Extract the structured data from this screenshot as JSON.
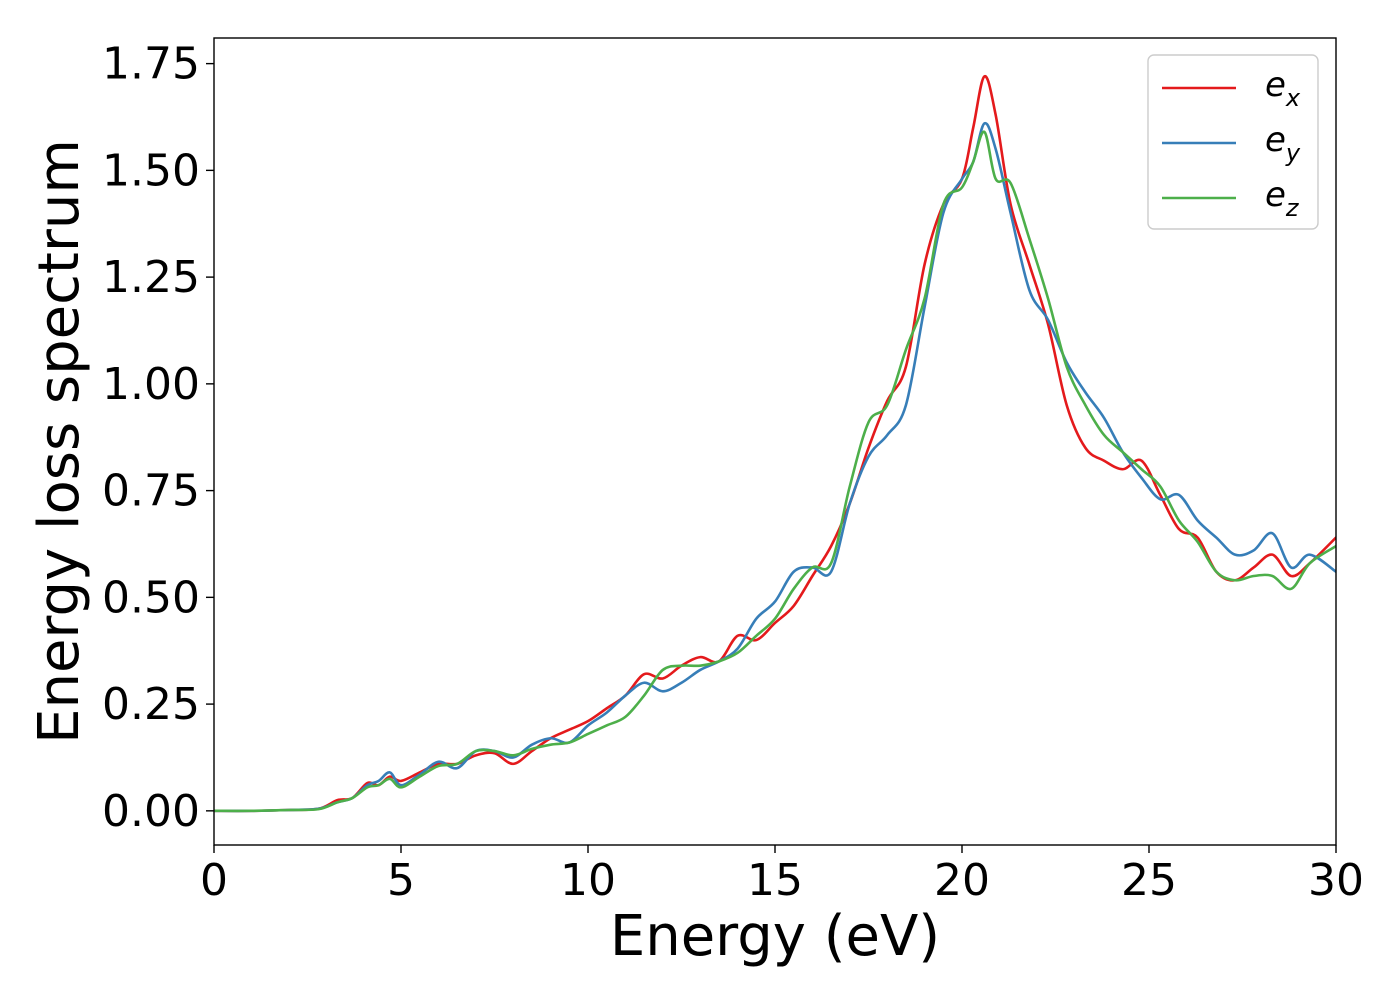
{
  "chart_data": {
    "type": "line",
    "title": "",
    "xlabel": "Energy (eV)",
    "ylabel": "Energy loss spectrum",
    "xlim": [
      0,
      30
    ],
    "ylim": [
      -0.08,
      1.81
    ],
    "xticks": [
      0,
      5,
      10,
      15,
      20,
      25,
      30
    ],
    "xtick_labels": [
      "0",
      "5",
      "10",
      "15",
      "20",
      "25",
      "30"
    ],
    "yticks": [
      0.0,
      0.25,
      0.5,
      0.75,
      1.0,
      1.25,
      1.5,
      1.75
    ],
    "ytick_labels": [
      "0.00",
      "0.25",
      "0.50",
      "0.75",
      "1.00",
      "1.25",
      "1.50",
      "1.75"
    ],
    "grid": false,
    "legend_position": "top-right",
    "series": [
      {
        "name": "e",
        "subscript": "x",
        "color": "#e41a1c",
        "x": [
          0,
          1,
          2,
          2.8,
          3.3,
          3.7,
          4.1,
          4.4,
          4.7,
          5.0,
          5.5,
          6.0,
          6.5,
          7.0,
          7.5,
          8.0,
          8.5,
          9.0,
          9.5,
          10.0,
          10.5,
          11.0,
          11.5,
          12.0,
          12.5,
          13.0,
          13.5,
          14.0,
          14.5,
          15.0,
          15.5,
          16.0,
          16.5,
          17.0,
          17.5,
          18.0,
          18.5,
          19.0,
          19.5,
          20.0,
          20.3,
          20.6,
          20.9,
          21.3,
          21.8,
          22.3,
          22.8,
          23.3,
          23.8,
          24.3,
          24.8,
          25.3,
          25.8,
          26.3,
          26.8,
          27.3,
          27.8,
          28.3,
          28.8,
          29.3,
          30.0
        ],
        "y": [
          0.0,
          0.0,
          0.002,
          0.005,
          0.025,
          0.03,
          0.065,
          0.06,
          0.08,
          0.07,
          0.09,
          0.11,
          0.11,
          0.13,
          0.135,
          0.11,
          0.14,
          0.17,
          0.19,
          0.21,
          0.24,
          0.27,
          0.32,
          0.31,
          0.34,
          0.36,
          0.35,
          0.41,
          0.4,
          0.44,
          0.48,
          0.55,
          0.62,
          0.72,
          0.85,
          0.96,
          1.04,
          1.28,
          1.42,
          1.48,
          1.6,
          1.72,
          1.63,
          1.42,
          1.28,
          1.14,
          0.95,
          0.85,
          0.82,
          0.8,
          0.82,
          0.74,
          0.66,
          0.64,
          0.56,
          0.54,
          0.57,
          0.6,
          0.55,
          0.58,
          0.64
        ]
      },
      {
        "name": "e",
        "subscript": "y",
        "color": "#377eb8",
        "x": [
          0,
          1,
          2,
          2.8,
          3.3,
          3.7,
          4.1,
          4.4,
          4.7,
          5.0,
          5.5,
          6.0,
          6.5,
          7.0,
          7.5,
          8.0,
          8.5,
          9.0,
          9.5,
          10.0,
          10.5,
          11.0,
          11.5,
          12.0,
          12.5,
          13.0,
          13.5,
          14.0,
          14.5,
          15.0,
          15.5,
          16.0,
          16.5,
          17.0,
          17.5,
          18.0,
          18.5,
          19.0,
          19.5,
          20.0,
          20.3,
          20.6,
          20.9,
          21.3,
          21.8,
          22.3,
          22.8,
          23.3,
          23.8,
          24.3,
          24.8,
          25.3,
          25.8,
          26.3,
          26.8,
          27.3,
          27.8,
          28.3,
          28.8,
          29.3,
          30.0
        ],
        "y": [
          0.0,
          0.0,
          0.002,
          0.005,
          0.02,
          0.03,
          0.06,
          0.07,
          0.09,
          0.06,
          0.085,
          0.115,
          0.1,
          0.14,
          0.14,
          0.125,
          0.155,
          0.17,
          0.16,
          0.2,
          0.23,
          0.27,
          0.3,
          0.28,
          0.3,
          0.33,
          0.35,
          0.38,
          0.45,
          0.49,
          0.56,
          0.57,
          0.56,
          0.72,
          0.83,
          0.88,
          0.95,
          1.18,
          1.4,
          1.48,
          1.52,
          1.61,
          1.55,
          1.4,
          1.22,
          1.15,
          1.05,
          0.98,
          0.92,
          0.84,
          0.78,
          0.73,
          0.74,
          0.68,
          0.64,
          0.6,
          0.61,
          0.65,
          0.57,
          0.6,
          0.56
        ]
      },
      {
        "name": "e",
        "subscript": "z",
        "color": "#4daf4a",
        "x": [
          0,
          1,
          2,
          2.8,
          3.3,
          3.7,
          4.1,
          4.4,
          4.7,
          5.0,
          5.5,
          6.0,
          6.5,
          7.0,
          7.5,
          8.0,
          8.5,
          9.0,
          9.5,
          10.0,
          10.5,
          11.0,
          11.5,
          12.0,
          12.5,
          13.0,
          13.5,
          14.0,
          14.5,
          15.0,
          15.5,
          16.0,
          16.5,
          17.0,
          17.5,
          18.0,
          18.5,
          19.0,
          19.5,
          20.0,
          20.3,
          20.6,
          20.9,
          21.3,
          21.8,
          22.3,
          22.8,
          23.3,
          23.8,
          24.3,
          24.8,
          25.3,
          25.8,
          26.3,
          26.8,
          27.3,
          27.8,
          28.3,
          28.8,
          29.3,
          30.0
        ],
        "y": [
          0.0,
          0.0,
          0.002,
          0.004,
          0.02,
          0.03,
          0.055,
          0.06,
          0.075,
          0.055,
          0.08,
          0.105,
          0.11,
          0.14,
          0.14,
          0.13,
          0.145,
          0.155,
          0.16,
          0.18,
          0.2,
          0.22,
          0.27,
          0.33,
          0.34,
          0.34,
          0.35,
          0.37,
          0.41,
          0.45,
          0.52,
          0.57,
          0.58,
          0.76,
          0.91,
          0.95,
          1.08,
          1.2,
          1.42,
          1.46,
          1.52,
          1.59,
          1.48,
          1.47,
          1.34,
          1.2,
          1.04,
          0.95,
          0.88,
          0.84,
          0.8,
          0.76,
          0.68,
          0.63,
          0.56,
          0.54,
          0.55,
          0.55,
          0.52,
          0.58,
          0.62
        ]
      }
    ]
  }
}
